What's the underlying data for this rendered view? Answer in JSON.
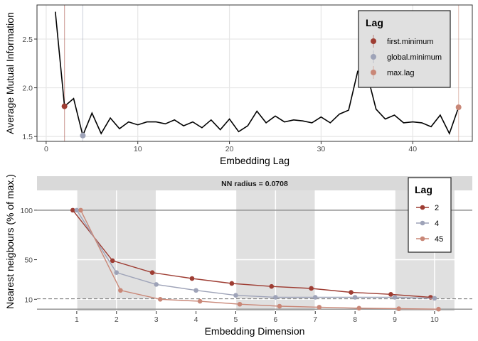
{
  "chart_data": [
    {
      "type": "line",
      "xlabel": "Embedding Lag",
      "ylabel": "Average Mutual Information",
      "xlim": [
        -1,
        46.5
      ],
      "ylim": [
        1.45,
        2.85
      ],
      "xticks": [
        0,
        10,
        20,
        30,
        40
      ],
      "yticks": [
        1.5,
        2.0,
        2.5
      ],
      "grid": true,
      "x": [
        1,
        2,
        3,
        4,
        5,
        6,
        7,
        8,
        9,
        10,
        11,
        12,
        13,
        14,
        15,
        16,
        17,
        18,
        19,
        20,
        21,
        22,
        23,
        24,
        25,
        26,
        27,
        28,
        29,
        30,
        31,
        32,
        33,
        34,
        35,
        36,
        37,
        38,
        39,
        40,
        41,
        42,
        43,
        44,
        45
      ],
      "values": [
        2.78,
        1.81,
        1.89,
        1.51,
        1.74,
        1.53,
        1.69,
        1.58,
        1.65,
        1.62,
        1.65,
        1.65,
        1.63,
        1.67,
        1.61,
        1.65,
        1.59,
        1.67,
        1.57,
        1.68,
        1.55,
        1.61,
        1.76,
        1.64,
        1.71,
        1.65,
        1.67,
        1.66,
        1.64,
        1.7,
        1.64,
        1.73,
        1.77,
        2.17,
        2.15,
        1.78,
        1.68,
        1.72,
        1.64,
        1.65,
        1.64,
        1.6,
        1.72,
        1.53,
        1.8
      ],
      "legend": {
        "title": "Lag",
        "placement": "top-right",
        "items": [
          {
            "label": "first.minimum",
            "color": "#9e3d33",
            "x": 2,
            "y": 1.81
          },
          {
            "label": "global.minimum",
            "color": "#9ea3b8",
            "x": 4,
            "y": 1.51
          },
          {
            "label": "max.lag",
            "color": "#c98777",
            "x": 45,
            "y": 1.8
          }
        ]
      }
    },
    {
      "type": "line",
      "title": "NN radius = 0.0708",
      "xlabel": "Embedding Dimension",
      "ylabel": "Nearest neigbours (% of max.)",
      "xlim": [
        0,
        10.95
      ],
      "ylim": [
        -2,
        120
      ],
      "xticks": [
        1,
        2,
        3,
        4,
        5,
        6,
        7,
        8,
        9,
        10
      ],
      "yticks": [
        10,
        50,
        100
      ],
      "reference_lines": {
        "solid": [
          100,
          0
        ],
        "dashed": [
          10.5
        ]
      },
      "shaded_dimensions": [
        [
          1,
          3
        ],
        [
          5,
          7
        ],
        [
          9,
          10.5
        ]
      ],
      "legend": {
        "title": "Lag",
        "placement": "top-right"
      },
      "categories": [
        1,
        2,
        3,
        4,
        5,
        6,
        7,
        8,
        9,
        10
      ],
      "series": [
        {
          "name": "2",
          "color": "#9e3d33",
          "offset": -0.1,
          "values": [
            100,
            49,
            37,
            31,
            26,
            23,
            21,
            17,
            15,
            12
          ]
        },
        {
          "name": "4",
          "color": "#9ea3b8",
          "offset": 0,
          "values": [
            100,
            37,
            25,
            19,
            14,
            12,
            12,
            12,
            12,
            11
          ]
        },
        {
          "name": "45",
          "color": "#c98777",
          "offset": 0.1,
          "values": [
            100,
            19,
            10,
            8,
            5,
            3,
            2,
            1,
            0.5,
            0
          ]
        }
      ]
    }
  ]
}
